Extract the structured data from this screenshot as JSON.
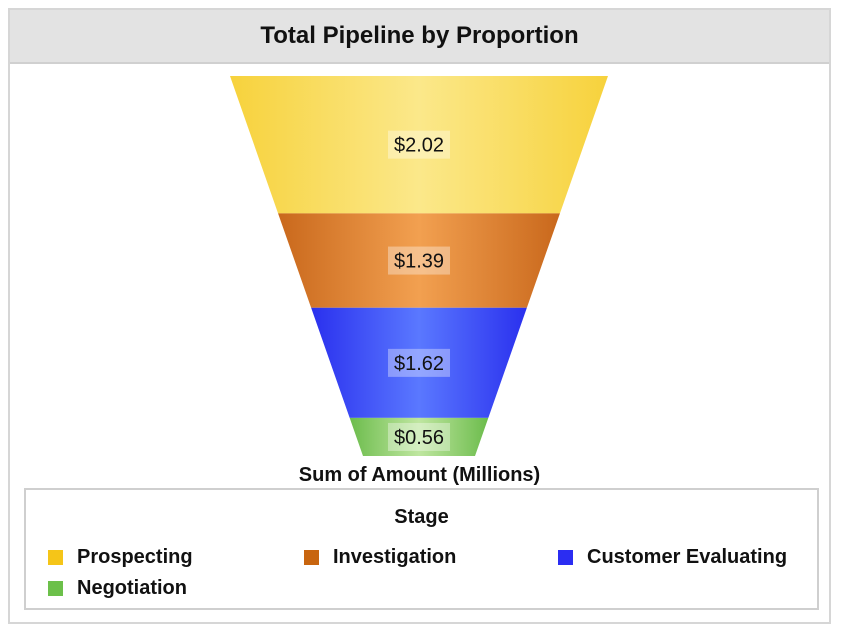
{
  "chart_data": {
    "type": "funnel",
    "title": "Total Pipeline by Proportion",
    "xlabel": "Sum of Amount (Millions)",
    "categories": [
      "Prospecting",
      "Investigation",
      "Customer Evaluating",
      "Negotiation"
    ],
    "values": [
      2.02,
      1.39,
      1.62,
      0.56
    ],
    "value_labels": [
      "$2.02",
      "$1.39",
      "$1.62",
      "$0.56"
    ],
    "colors": [
      "#f9d84a",
      "#d9822e",
      "#3a44f0",
      "#7cc35c"
    ],
    "legend": {
      "title": "Stage",
      "placement": "bottom",
      "items": [
        {
          "label": "Prospecting",
          "color": "#f5c518"
        },
        {
          "label": "Investigation",
          "color": "#c8650f"
        },
        {
          "label": "Customer Evaluating",
          "color": "#2b2df2"
        },
        {
          "label": "Negotiation",
          "color": "#6cc04a"
        }
      ]
    }
  }
}
